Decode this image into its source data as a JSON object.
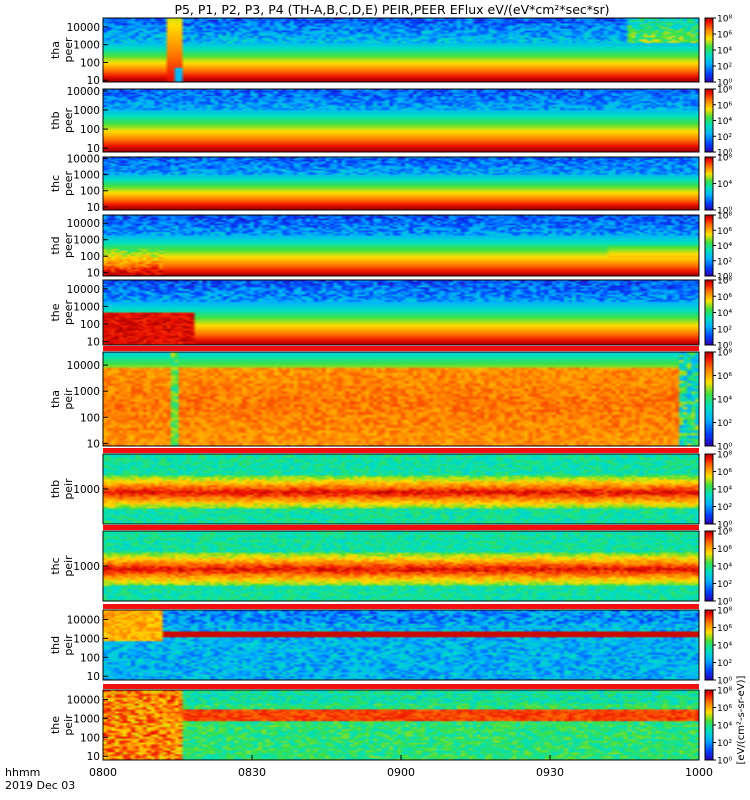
{
  "chart_data": {
    "type": "heatmap",
    "title": "P5, P1, P2, P3, P4 (TH-A,B,C,D,E) PEIR,PEER EFlux eV/(eV*cm²*sec*sr)",
    "x_ticks": [
      "0800",
      "0830",
      "0900",
      "0930",
      "1000"
    ],
    "x_tick_minutes": [
      0,
      30,
      60,
      90,
      120
    ],
    "x_range_minutes": [
      0,
      120
    ],
    "x_corner_label": "hhmm",
    "date_label": "2019 Dec 03",
    "colorbar_label": "[eV/(cm²-s-sr-eV)]",
    "colorbar_ticks": [
      "10⁰",
      "10²",
      "10⁴",
      "10⁶",
      "10⁸"
    ],
    "colorbar_log_range": [
      0,
      8
    ],
    "panels": [
      {
        "name_line1": "tha",
        "name_line2": "peer",
        "ticks": [
          "10000",
          "1000",
          "100",
          "10"
        ],
        "tick_values": [
          10000,
          1000,
          100,
          10
        ],
        "ylog": [
          0.9,
          4.5
        ],
        "variant": "tha_peer"
      },
      {
        "name_line1": "thb",
        "name_line2": "peer",
        "ticks": [
          "10000",
          "1000",
          "100",
          "10"
        ],
        "tick_values": [
          10000,
          1000,
          100,
          10
        ],
        "ylog": [
          0.8,
          4.1
        ],
        "variant": "std_peer"
      },
      {
        "name_line1": "thc",
        "name_line2": "peer",
        "ticks": [
          "10000",
          "1000",
          "100",
          "10"
        ],
        "tick_values": [
          10000,
          1000,
          100,
          10
        ],
        "ylog": [
          0.8,
          4.1
        ],
        "variant": "std_peer"
      },
      {
        "name_line1": "thd",
        "name_line2": "peer",
        "ticks": [
          "10000",
          "1000",
          "100",
          "10"
        ],
        "tick_values": [
          10000,
          1000,
          100,
          10
        ],
        "ylog": [
          0.8,
          4.5
        ],
        "variant": "thd_peer"
      },
      {
        "name_line1": "the",
        "name_line2": "peer",
        "ticks": [
          "10000",
          "1000",
          "100",
          "10"
        ],
        "tick_values": [
          10000,
          1000,
          100,
          10
        ],
        "ylog": [
          0.8,
          4.5
        ],
        "variant": "the_peer"
      },
      {
        "name_line1": "tha",
        "name_line2": "peir",
        "ticks": [
          "10000",
          "1000",
          "100",
          "10"
        ],
        "tick_values": [
          10000,
          1000,
          100,
          10
        ],
        "ylog": [
          0.9,
          4.5
        ],
        "variant": "tha_peir"
      },
      {
        "name_line1": "thb",
        "name_line2": "peir",
        "ticks": [
          "1000"
        ],
        "tick_values": [
          1000
        ],
        "ylog": [
          2.4,
          3.6
        ],
        "variant": "flat_peir"
      },
      {
        "name_line1": "thc",
        "name_line2": "peir",
        "ticks": [
          "1000"
        ],
        "tick_values": [
          1000
        ],
        "ylog": [
          2.4,
          3.6
        ],
        "variant": "flat_peir"
      },
      {
        "name_line1": "thd",
        "name_line2": "peir",
        "ticks": [
          "10000",
          "1000",
          "100",
          "10"
        ],
        "tick_values": [
          10000,
          1000,
          100,
          10
        ],
        "ylog": [
          0.8,
          4.5
        ],
        "variant": "thd_peir"
      },
      {
        "name_line1": "the",
        "name_line2": "peir",
        "ticks": [
          "10000",
          "1000",
          "100",
          "10"
        ],
        "tick_values": [
          10000,
          1000,
          100,
          10
        ],
        "ylog": [
          0.8,
          4.5
        ],
        "variant": "the_peir"
      }
    ]
  }
}
